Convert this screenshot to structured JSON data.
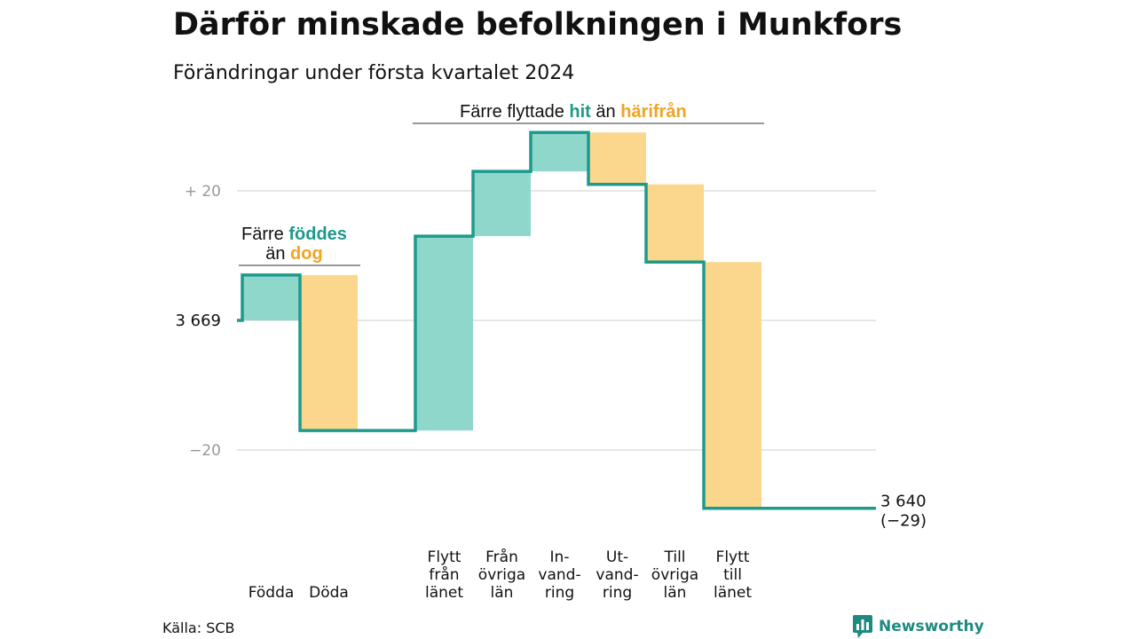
{
  "title": "Därför minskade befolkningen i Munkfors",
  "subtitle": "Förändringar under första kvartalet 2024",
  "source": "Källa: SCB",
  "brand": "Newsworthy",
  "colors": {
    "increase": "#8fd6cb",
    "decrease": "#fbd68d",
    "line": "#1e9a8c",
    "grid": "#dddddd",
    "teal_text": "#1e9a8c",
    "orange_text": "#f0a423"
  },
  "annotations": {
    "births": {
      "line1": "Färre",
      "line1_highlight": "föddes",
      "line2": "än",
      "line2_highlight": "dog"
    },
    "migration": {
      "text": "Färre flyttade",
      "highlight1": "hit",
      "middle": "än",
      "highlight2": "härifrån"
    }
  },
  "chart_data": {
    "type": "waterfall",
    "start_value": 3669,
    "start_label": "3 669",
    "end_label": "3 640",
    "end_change_label": "(−29)",
    "y_ticks": [
      {
        "value": 20,
        "label": "+ 20"
      },
      {
        "value": 0,
        "label": "3 669"
      },
      {
        "value": -20,
        "label": "−20"
      }
    ],
    "ylim": [
      -35,
      35
    ],
    "steps": [
      {
        "label": [
          "Födda"
        ],
        "delta": 7
      },
      {
        "label": [
          "Döda"
        ],
        "delta": -24
      },
      {
        "label": [
          "Flytt",
          "från",
          "länet"
        ],
        "delta": 30
      },
      {
        "label": [
          "Från",
          "övriga",
          "län"
        ],
        "delta": 10
      },
      {
        "label": [
          "In-",
          "vand-",
          "ring"
        ],
        "delta": 6
      },
      {
        "label": [
          "Ut-",
          "vand-",
          "ring"
        ],
        "delta": -8
      },
      {
        "label": [
          "Till",
          "övriga",
          "län"
        ],
        "delta": -12
      },
      {
        "label": [
          "Flytt",
          "till",
          "länet"
        ],
        "delta": -38
      }
    ],
    "step_gaps_after": [
      1
    ]
  }
}
